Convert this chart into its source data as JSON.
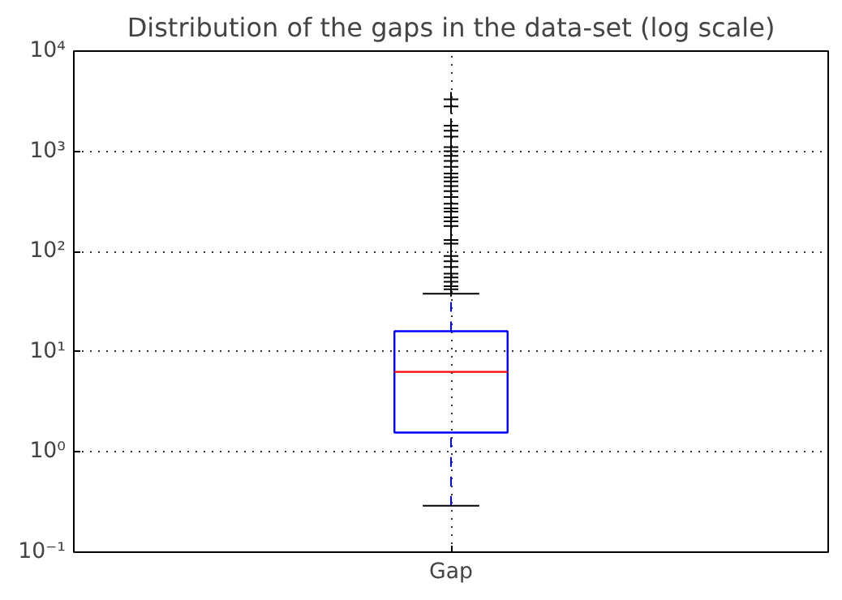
{
  "chart_data": {
    "type": "box",
    "title": "Distribution of the gaps in the data-set (log scale)",
    "categories": [
      "Gap"
    ],
    "series": [
      {
        "color": "#0000ff",
        "boxes": [
          {
            "low": 0.29,
            "q1": 1.56,
            "median": 6.3,
            "q3": 16,
            "high": 38,
            "outliers": [
              3300,
              2800,
              1800,
              1600,
              1400,
              1100,
              1000,
              900,
              800,
              700,
              600,
              550,
              500,
              450,
              400,
              350,
              300,
              270,
              250,
              220,
              200,
              180,
              130,
              120,
              90,
              80,
              70,
              60,
              55,
              50,
              45,
              42
            ]
          }
        ]
      }
    ],
    "log": "y",
    "ylim": [
      0.1,
      10000
    ],
    "yticks": [
      {
        "value": 0.1,
        "label": "10⁻¹"
      },
      {
        "value": 1,
        "label": "10⁰"
      },
      {
        "value": 10,
        "label": "10¹"
      },
      {
        "value": 100,
        "label": "10²"
      },
      {
        "value": 1000,
        "label": "10³"
      },
      {
        "value": 10000,
        "label": "10⁴"
      }
    ],
    "grid": true,
    "marker": "cross"
  }
}
